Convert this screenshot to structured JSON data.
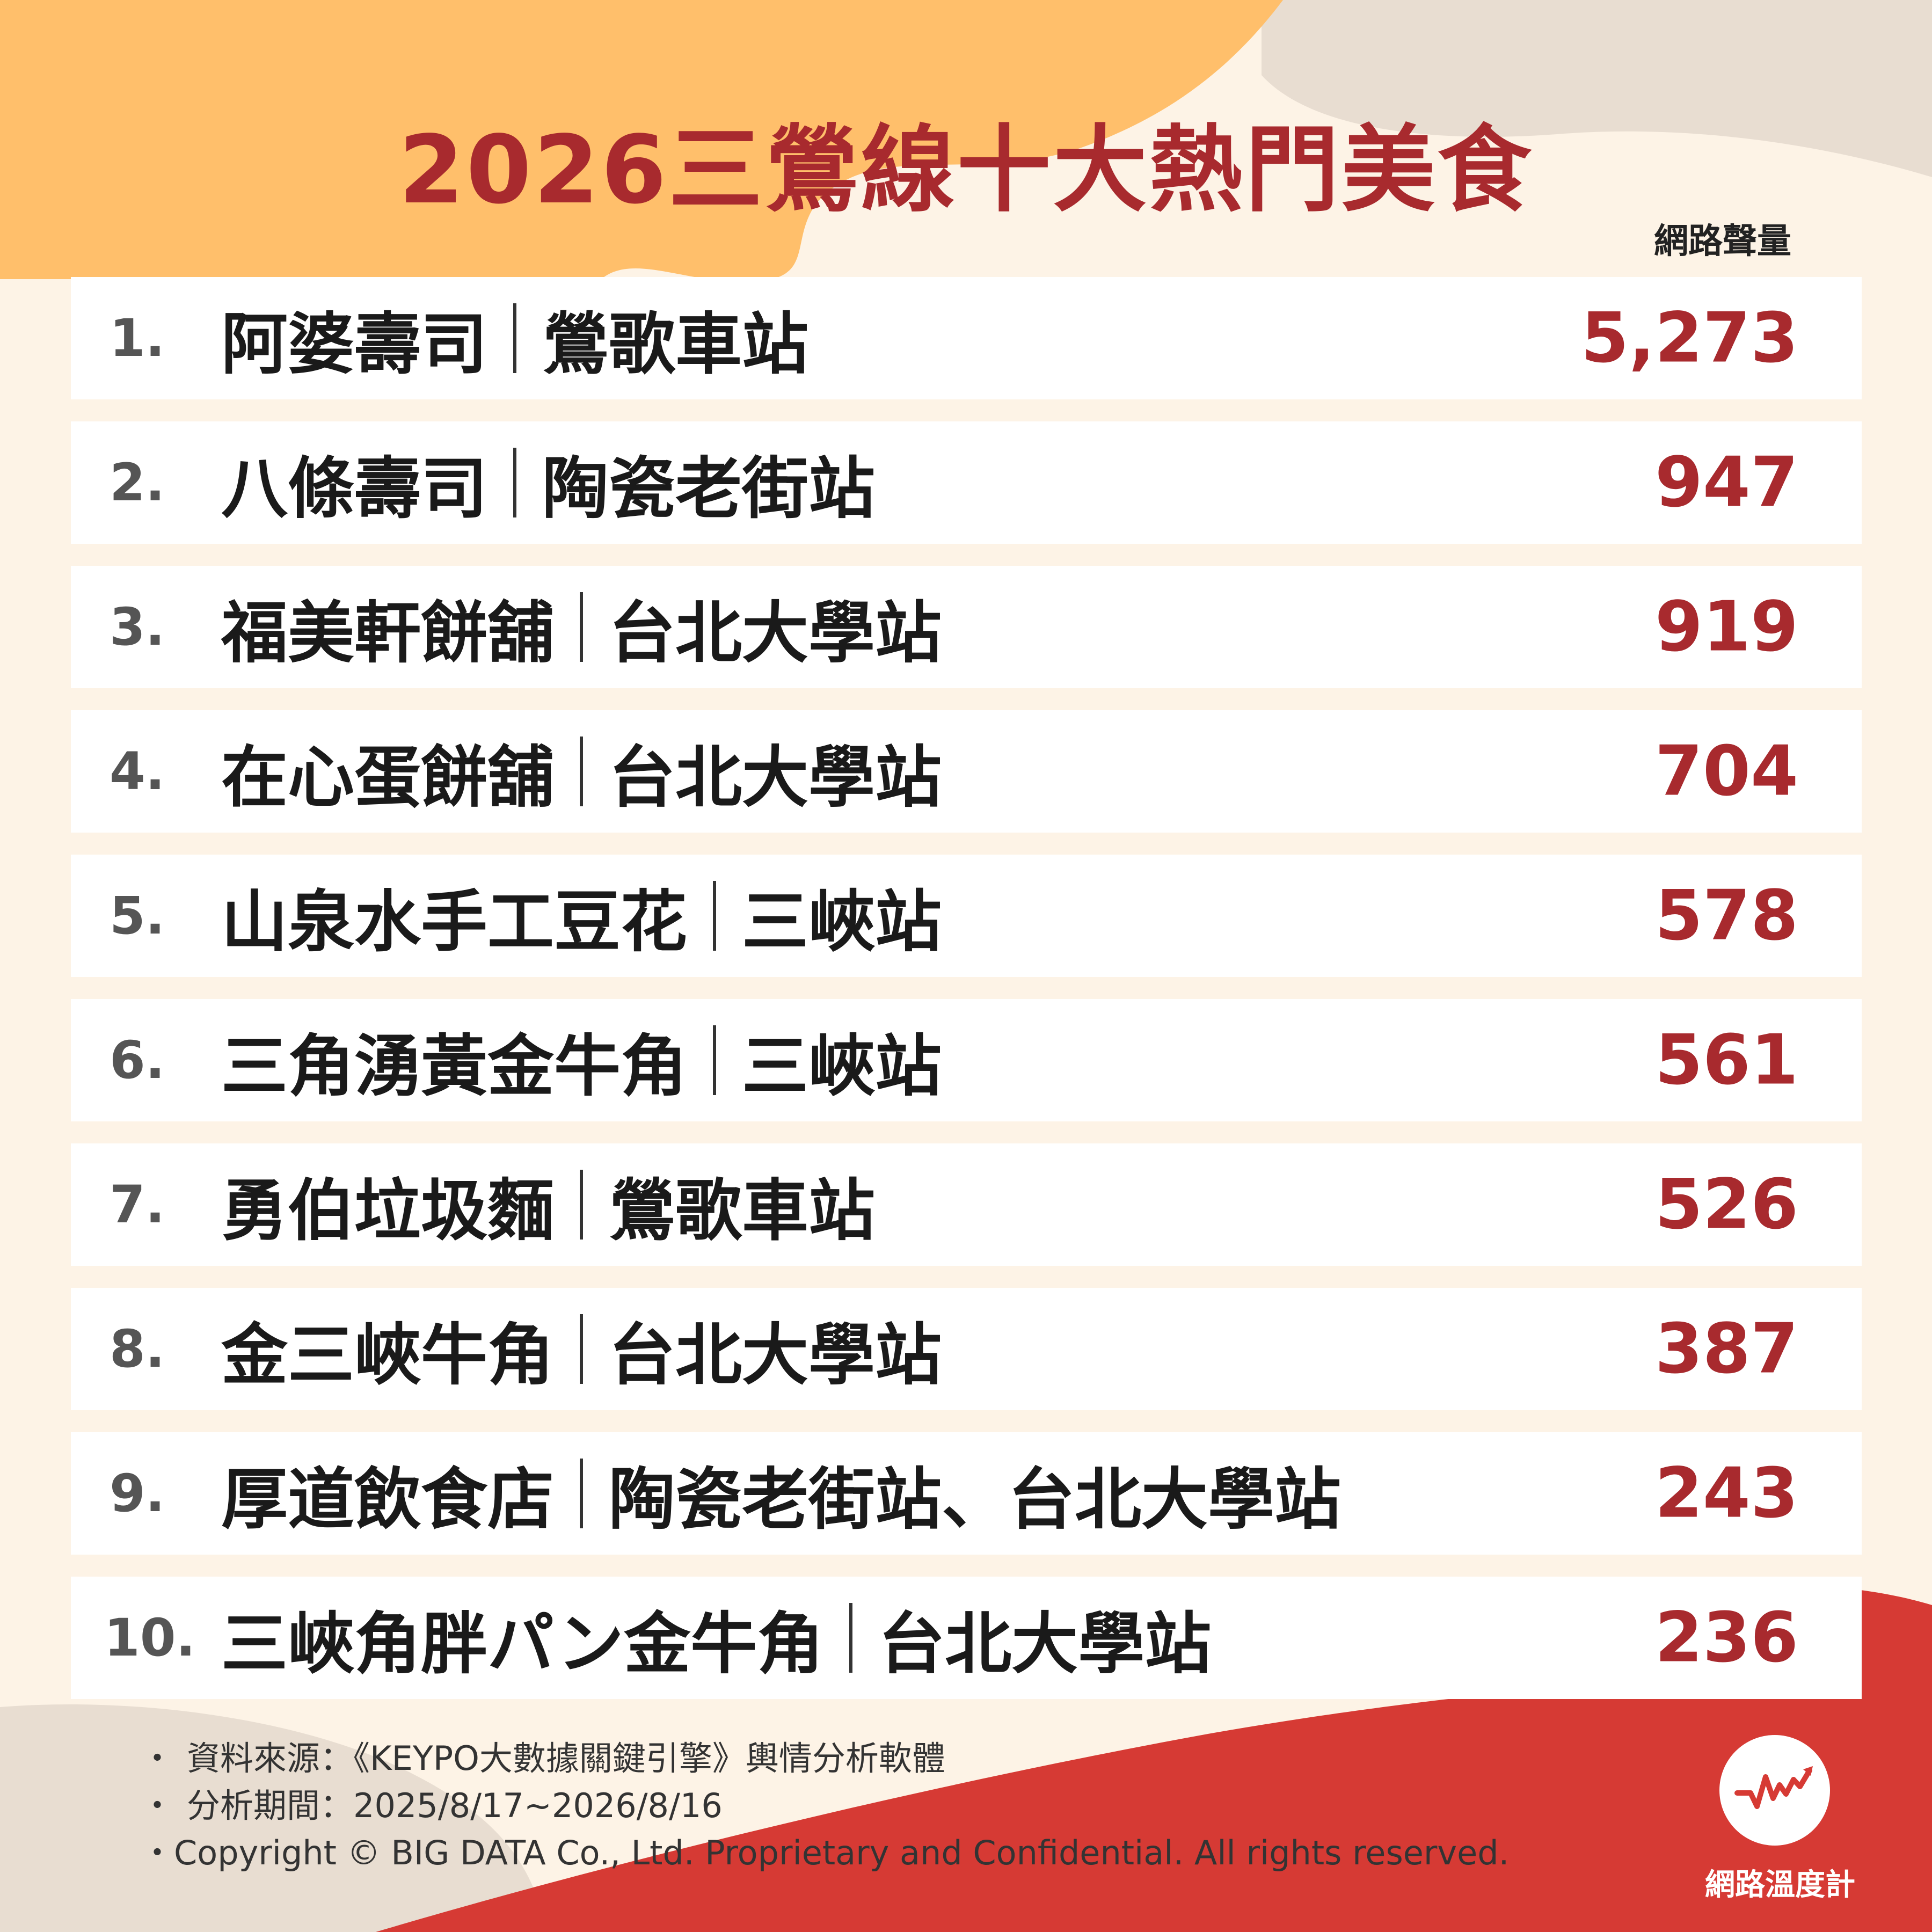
{
  "title": "2026三鶯線十大熱門美食",
  "column_header": "網路聲量",
  "colors": {
    "accent": "#a82a2e",
    "orange": "#ffbf6b",
    "beige": "#e8ddd1",
    "cream": "#fdf3e6"
  },
  "rows": [
    {
      "rank": "1.",
      "name": "阿婆壽司",
      "station": "鶯歌車站",
      "value": "5,273"
    },
    {
      "rank": "2.",
      "name": "八條壽司",
      "station": "陶瓷老街站",
      "value": "947"
    },
    {
      "rank": "3.",
      "name": "福美軒餅舖",
      "station": "台北大學站",
      "value": "919"
    },
    {
      "rank": "4.",
      "name": "在心蛋餅舖",
      "station": "台北大學站",
      "value": "704"
    },
    {
      "rank": "5.",
      "name": "山泉水手工豆花",
      "station": "三峽站",
      "value": "578"
    },
    {
      "rank": "6.",
      "name": "三角湧黃金牛角",
      "station": "三峽站",
      "value": "561"
    },
    {
      "rank": "7.",
      "name": "勇伯垃圾麵",
      "station": "鶯歌車站",
      "value": "526"
    },
    {
      "rank": "8.",
      "name": "金三峽牛角",
      "station": "台北大學站",
      "value": "387"
    },
    {
      "rank": "9.",
      "name": "厚道飲食店",
      "station": "陶瓷老街站、台北大學站",
      "value": "243"
    },
    {
      "rank": "10.",
      "name": "三峽角胖パン金牛角",
      "station": "台北大學站",
      "value": "236"
    }
  ],
  "notes": {
    "bullet": "・",
    "source": "資料來源：《KEYPO大數據關鍵引擎》輿情分析軟體",
    "period": "分析期間：2025/8/17~2026/8/16",
    "copyright": "Copyright © BIG DATA Co., Ltd. Proprietary and Confidential. All rights reserved."
  },
  "logo": {
    "text": "網路溫度計",
    "icon": "heartbeat-icon"
  }
}
